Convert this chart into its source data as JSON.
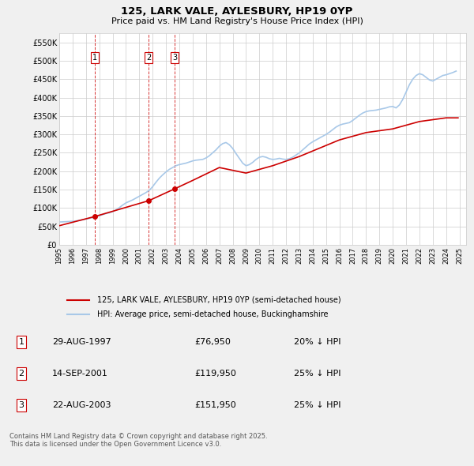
{
  "title": "125, LARK VALE, AYLESBURY, HP19 0YP",
  "subtitle": "Price paid vs. HM Land Registry's House Price Index (HPI)",
  "ylim": [
    0,
    575000
  ],
  "yticks": [
    0,
    50000,
    100000,
    150000,
    200000,
    250000,
    300000,
    350000,
    400000,
    450000,
    500000,
    550000
  ],
  "ytick_labels": [
    "£0",
    "£50K",
    "£100K",
    "£150K",
    "£200K",
    "£250K",
    "£300K",
    "£350K",
    "£400K",
    "£450K",
    "£500K",
    "£550K"
  ],
  "bg_color": "#f0f0f0",
  "plot_bg_color": "#ffffff",
  "hpi_color": "#a8c8e8",
  "price_color": "#cc0000",
  "vline_color": "#cc0000",
  "purchases": [
    {
      "date_num": 1997.66,
      "price": 76950,
      "label": "1"
    },
    {
      "date_num": 2001.71,
      "price": 119950,
      "label": "2"
    },
    {
      "date_num": 2003.64,
      "price": 151950,
      "label": "3"
    }
  ],
  "legend_entries": [
    "125, LARK VALE, AYLESBURY, HP19 0YP (semi-detached house)",
    "HPI: Average price, semi-detached house, Buckinghamshire"
  ],
  "table_rows": [
    [
      "1",
      "29-AUG-1997",
      "£76,950",
      "20% ↓ HPI"
    ],
    [
      "2",
      "14-SEP-2001",
      "£119,950",
      "25% ↓ HPI"
    ],
    [
      "3",
      "22-AUG-2003",
      "£151,950",
      "25% ↓ HPI"
    ]
  ],
  "footnote": "Contains HM Land Registry data © Crown copyright and database right 2025.\nThis data is licensed under the Open Government Licence v3.0.",
  "hpi_data": {
    "years": [
      1995.0,
      1995.25,
      1995.5,
      1995.75,
      1996.0,
      1996.25,
      1996.5,
      1996.75,
      1997.0,
      1997.25,
      1997.5,
      1997.75,
      1998.0,
      1998.25,
      1998.5,
      1998.75,
      1999.0,
      1999.25,
      1999.5,
      1999.75,
      2000.0,
      2000.25,
      2000.5,
      2000.75,
      2001.0,
      2001.25,
      2001.5,
      2001.75,
      2002.0,
      2002.25,
      2002.5,
      2002.75,
      2003.0,
      2003.25,
      2003.5,
      2003.75,
      2004.0,
      2004.25,
      2004.5,
      2004.75,
      2005.0,
      2005.25,
      2005.5,
      2005.75,
      2006.0,
      2006.25,
      2006.5,
      2006.75,
      2007.0,
      2007.25,
      2007.5,
      2007.75,
      2008.0,
      2008.25,
      2008.5,
      2008.75,
      2009.0,
      2009.25,
      2009.5,
      2009.75,
      2010.0,
      2010.25,
      2010.5,
      2010.75,
      2011.0,
      2011.25,
      2011.5,
      2011.75,
      2012.0,
      2012.25,
      2012.5,
      2012.75,
      2013.0,
      2013.25,
      2013.5,
      2013.75,
      2014.0,
      2014.25,
      2014.5,
      2014.75,
      2015.0,
      2015.25,
      2015.5,
      2015.75,
      2016.0,
      2016.25,
      2016.5,
      2016.75,
      2017.0,
      2017.25,
      2017.5,
      2017.75,
      2018.0,
      2018.25,
      2018.5,
      2018.75,
      2019.0,
      2019.25,
      2019.5,
      2019.75,
      2020.0,
      2020.25,
      2020.5,
      2020.75,
      2021.0,
      2021.25,
      2021.5,
      2021.75,
      2022.0,
      2022.25,
      2022.5,
      2022.75,
      2023.0,
      2023.25,
      2023.5,
      2023.75,
      2024.0,
      2024.25,
      2024.5,
      2024.75
    ],
    "values": [
      62000,
      62500,
      63000,
      63500,
      64000,
      65000,
      66500,
      68000,
      70000,
      72000,
      74000,
      76000,
      79000,
      82000,
      85000,
      87000,
      90000,
      95000,
      101000,
      108000,
      114000,
      118000,
      122000,
      127000,
      132000,
      137000,
      142000,
      148000,
      158000,
      170000,
      181000,
      190000,
      198000,
      205000,
      210000,
      215000,
      218000,
      220000,
      222000,
      225000,
      228000,
      230000,
      231000,
      232000,
      236000,
      242000,
      250000,
      258000,
      268000,
      275000,
      278000,
      272000,
      262000,
      248000,
      235000,
      222000,
      215000,
      218000,
      224000,
      232000,
      238000,
      240000,
      238000,
      234000,
      232000,
      233000,
      235000,
      233000,
      232000,
      234000,
      238000,
      244000,
      250000,
      258000,
      266000,
      274000,
      280000,
      285000,
      290000,
      295000,
      300000,
      306000,
      313000,
      320000,
      325000,
      328000,
      330000,
      332000,
      338000,
      345000,
      352000,
      358000,
      362000,
      364000,
      365000,
      366000,
      368000,
      370000,
      372000,
      375000,
      376000,
      372000,
      380000,
      395000,
      415000,
      435000,
      450000,
      460000,
      465000,
      462000,
      455000,
      448000,
      445000,
      450000,
      455000,
      460000,
      462000,
      465000,
      468000,
      472000
    ]
  },
  "price_data": {
    "years": [
      1995.0,
      1997.66,
      2001.71,
      2003.64,
      2005.0,
      2007.0,
      2009.0,
      2011.0,
      2013.0,
      2015.0,
      2016.0,
      2017.0,
      2018.0,
      2019.0,
      2020.0,
      2021.0,
      2022.0,
      2023.0,
      2024.0,
      2024.9
    ],
    "values": [
      52000,
      76950,
      119950,
      151950,
      175000,
      210000,
      195000,
      215000,
      240000,
      270000,
      285000,
      295000,
      305000,
      310000,
      315000,
      325000,
      335000,
      340000,
      345000,
      345000
    ]
  }
}
